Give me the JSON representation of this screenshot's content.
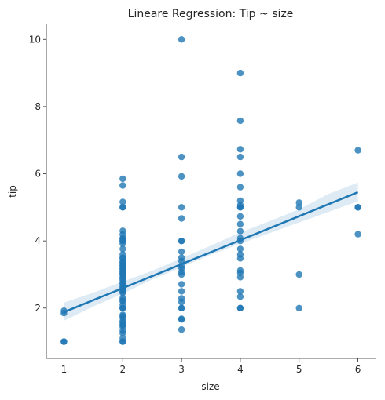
{
  "chart_data": {
    "type": "scatter",
    "title": "Lineare Regression: Tip ~ size",
    "xlabel": "size",
    "ylabel": "tip",
    "xlim": [
      0.7,
      6.3
    ],
    "ylim": [
      0.5,
      10.45
    ],
    "x_ticks": [
      1,
      2,
      3,
      4,
      5,
      6
    ],
    "y_ticks": [
      2,
      4,
      6,
      8,
      10
    ],
    "grid": false,
    "legend": "none",
    "colors": {
      "points": "#1f77b4",
      "line": "#1f77b4",
      "band": "#1f77b4"
    },
    "points": [
      {
        "x": 1,
        "y": 1.0
      },
      {
        "x": 1,
        "y": 1.0
      },
      {
        "x": 1,
        "y": 1.85
      },
      {
        "x": 1,
        "y": 1.92
      },
      {
        "x": 2,
        "y": 1.0
      },
      {
        "x": 2,
        "y": 1.0
      },
      {
        "x": 2,
        "y": 1.1
      },
      {
        "x": 2,
        "y": 1.25
      },
      {
        "x": 2,
        "y": 1.32
      },
      {
        "x": 2,
        "y": 1.44
      },
      {
        "x": 2,
        "y": 1.5
      },
      {
        "x": 2,
        "y": 1.5
      },
      {
        "x": 2,
        "y": 1.57
      },
      {
        "x": 2,
        "y": 1.61
      },
      {
        "x": 2,
        "y": 1.71
      },
      {
        "x": 2,
        "y": 1.76
      },
      {
        "x": 2,
        "y": 1.8
      },
      {
        "x": 2,
        "y": 2.0
      },
      {
        "x": 2,
        "y": 2.0
      },
      {
        "x": 2,
        "y": 2.0
      },
      {
        "x": 2,
        "y": 2.09
      },
      {
        "x": 2,
        "y": 2.2
      },
      {
        "x": 2,
        "y": 2.24
      },
      {
        "x": 2,
        "y": 2.3
      },
      {
        "x": 2,
        "y": 2.45
      },
      {
        "x": 2,
        "y": 2.5
      },
      {
        "x": 2,
        "y": 2.5
      },
      {
        "x": 2,
        "y": 2.56
      },
      {
        "x": 2,
        "y": 2.6
      },
      {
        "x": 2,
        "y": 2.64
      },
      {
        "x": 2,
        "y": 2.72
      },
      {
        "x": 2,
        "y": 2.75
      },
      {
        "x": 2,
        "y": 2.83
      },
      {
        "x": 2,
        "y": 2.88
      },
      {
        "x": 2,
        "y": 2.92
      },
      {
        "x": 2,
        "y": 3.0
      },
      {
        "x": 2,
        "y": 3.0
      },
      {
        "x": 2,
        "y": 3.06
      },
      {
        "x": 2,
        "y": 3.09
      },
      {
        "x": 2,
        "y": 3.15
      },
      {
        "x": 2,
        "y": 3.18
      },
      {
        "x": 2,
        "y": 3.23
      },
      {
        "x": 2,
        "y": 3.27
      },
      {
        "x": 2,
        "y": 3.31
      },
      {
        "x": 2,
        "y": 3.35
      },
      {
        "x": 2,
        "y": 3.39
      },
      {
        "x": 2,
        "y": 3.48
      },
      {
        "x": 2,
        "y": 3.5
      },
      {
        "x": 2,
        "y": 3.6
      },
      {
        "x": 2,
        "y": 3.76
      },
      {
        "x": 2,
        "y": 3.92
      },
      {
        "x": 2,
        "y": 4.0
      },
      {
        "x": 2,
        "y": 4.0
      },
      {
        "x": 2,
        "y": 4.06
      },
      {
        "x": 2,
        "y": 4.08
      },
      {
        "x": 2,
        "y": 4.19
      },
      {
        "x": 2,
        "y": 4.3
      },
      {
        "x": 2,
        "y": 5.0
      },
      {
        "x": 2,
        "y": 5.0
      },
      {
        "x": 2,
        "y": 5.16
      },
      {
        "x": 2,
        "y": 5.65
      },
      {
        "x": 2,
        "y": 5.85
      },
      {
        "x": 3,
        "y": 1.36
      },
      {
        "x": 3,
        "y": 1.66
      },
      {
        "x": 3,
        "y": 1.68
      },
      {
        "x": 3,
        "y": 2.0
      },
      {
        "x": 3,
        "y": 2.0
      },
      {
        "x": 3,
        "y": 2.18
      },
      {
        "x": 3,
        "y": 2.29
      },
      {
        "x": 3,
        "y": 2.5
      },
      {
        "x": 3,
        "y": 2.71
      },
      {
        "x": 3,
        "y": 3.0
      },
      {
        "x": 3,
        "y": 3.07
      },
      {
        "x": 3,
        "y": 3.18
      },
      {
        "x": 3,
        "y": 3.25
      },
      {
        "x": 3,
        "y": 3.4
      },
      {
        "x": 3,
        "y": 3.5
      },
      {
        "x": 3,
        "y": 3.68
      },
      {
        "x": 3,
        "y": 4.0
      },
      {
        "x": 3,
        "y": 4.0
      },
      {
        "x": 3,
        "y": 4.67
      },
      {
        "x": 3,
        "y": 5.0
      },
      {
        "x": 3,
        "y": 5.92
      },
      {
        "x": 3,
        "y": 6.5
      },
      {
        "x": 3,
        "y": 10.0
      },
      {
        "x": 4,
        "y": 2.0
      },
      {
        "x": 4,
        "y": 2.0
      },
      {
        "x": 4,
        "y": 2.34
      },
      {
        "x": 4,
        "y": 2.5
      },
      {
        "x": 4,
        "y": 2.92
      },
      {
        "x": 4,
        "y": 3.05
      },
      {
        "x": 4,
        "y": 3.12
      },
      {
        "x": 4,
        "y": 3.48
      },
      {
        "x": 4,
        "y": 3.6
      },
      {
        "x": 4,
        "y": 3.76
      },
      {
        "x": 4,
        "y": 4.0
      },
      {
        "x": 4,
        "y": 4.08
      },
      {
        "x": 4,
        "y": 4.29
      },
      {
        "x": 4,
        "y": 4.5
      },
      {
        "x": 4,
        "y": 4.73
      },
      {
        "x": 4,
        "y": 5.0
      },
      {
        "x": 4,
        "y": 5.0
      },
      {
        "x": 4,
        "y": 5.07
      },
      {
        "x": 4,
        "y": 5.2
      },
      {
        "x": 4,
        "y": 5.6
      },
      {
        "x": 4,
        "y": 6.0
      },
      {
        "x": 4,
        "y": 6.5
      },
      {
        "x": 4,
        "y": 6.73
      },
      {
        "x": 4,
        "y": 7.58
      },
      {
        "x": 4,
        "y": 9.0
      },
      {
        "x": 5,
        "y": 2.0
      },
      {
        "x": 5,
        "y": 3.0
      },
      {
        "x": 5,
        "y": 5.0
      },
      {
        "x": 5,
        "y": 5.14
      },
      {
        "x": 6,
        "y": 4.2
      },
      {
        "x": 6,
        "y": 5.0
      },
      {
        "x": 6,
        "y": 5.0
      },
      {
        "x": 6,
        "y": 6.7
      }
    ],
    "regression": {
      "x": [
        1,
        6
      ],
      "y": [
        1.88,
        5.45
      ]
    },
    "confidence_band": {
      "x": [
        1,
        1.5,
        2,
        2.5,
        3,
        3.5,
        4,
        4.5,
        5,
        5.5,
        6
      ],
      "lower": [
        1.62,
        2.05,
        2.43,
        2.85,
        3.22,
        3.59,
        3.92,
        4.23,
        4.55,
        4.86,
        5.18
      ],
      "upper": [
        2.16,
        2.46,
        2.79,
        3.11,
        3.48,
        3.86,
        4.25,
        4.59,
        4.94,
        5.4,
        5.74
      ]
    }
  }
}
